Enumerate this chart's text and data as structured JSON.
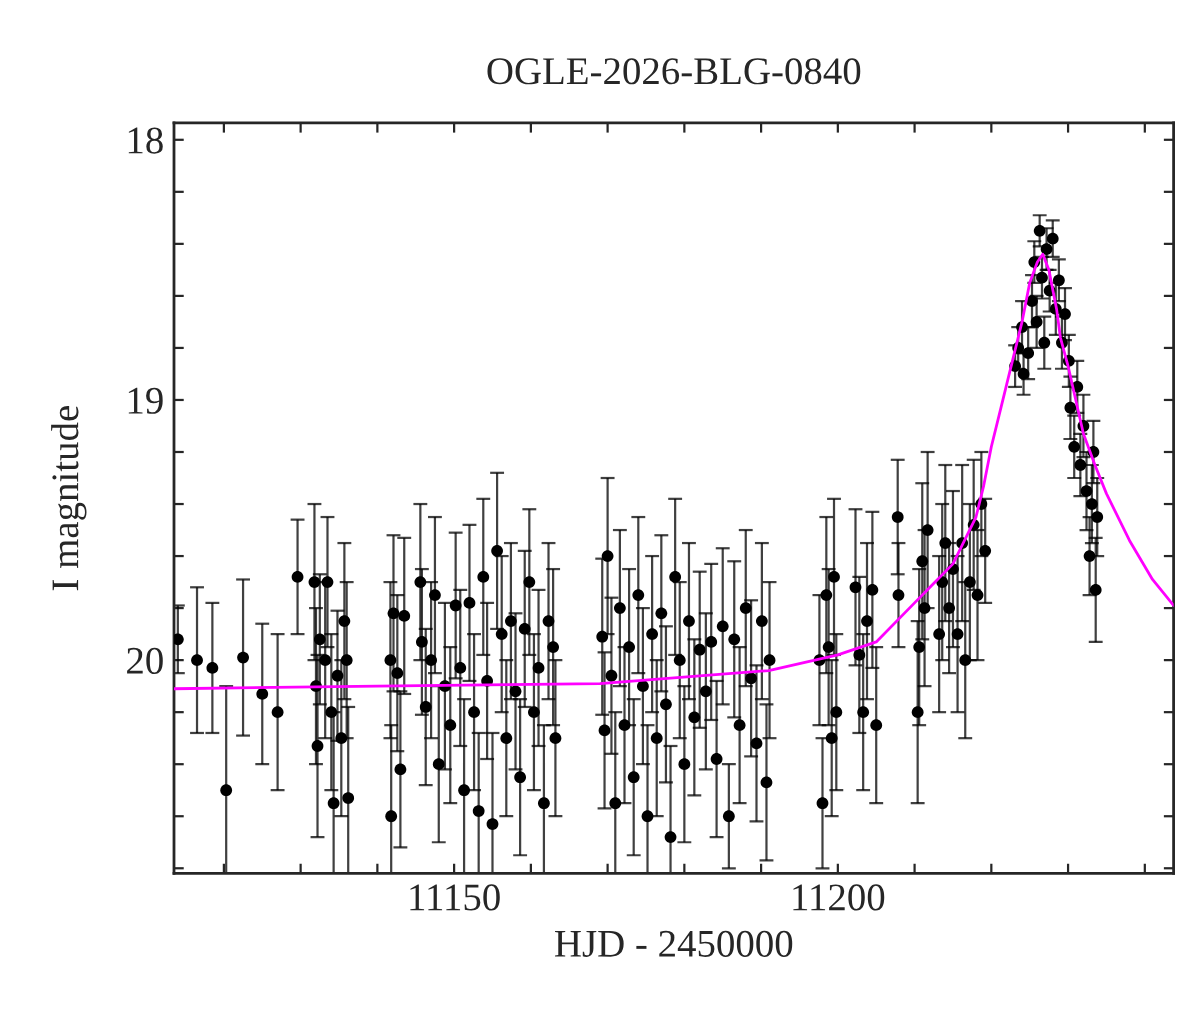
{
  "chart_data": {
    "type": "scatter",
    "title": "OGLE-2026-BLG-0840",
    "xlabel": "HJD - 2450000",
    "ylabel": "I magnitude",
    "xlim": [
      11113.5,
      11243.75
    ],
    "ylim": [
      20.82,
      17.935
    ],
    "xticks": [
      {
        "value": 11120,
        "label": null
      },
      {
        "value": 11130,
        "label": null
      },
      {
        "value": 11140,
        "label": null
      },
      11150,
      {
        "value": 11160,
        "label": null
      },
      {
        "value": 11170,
        "label": null
      },
      {
        "value": 11180,
        "label": null
      },
      {
        "value": 11190,
        "label": null
      },
      11200,
      {
        "value": 11210,
        "label": null
      },
      {
        "value": 11220,
        "label": null
      },
      {
        "value": 11230,
        "label": null
      },
      {
        "value": 11240,
        "label": null
      }
    ],
    "yticks": [
      18,
      {
        "value": 18.2,
        "label": null
      },
      {
        "value": 18.4,
        "label": null
      },
      {
        "value": 18.6,
        "label": null
      },
      {
        "value": 18.8,
        "label": null
      },
      19,
      {
        "value": 19.2,
        "label": null
      },
      {
        "value": 19.4,
        "label": null
      },
      {
        "value": 19.6,
        "label": null
      },
      {
        "value": 19.8,
        "label": null
      },
      20,
      {
        "value": 20.2,
        "label": null
      },
      {
        "value": 20.4,
        "label": null
      },
      {
        "value": 20.6,
        "label": null
      },
      {
        "value": 20.8,
        "label": null
      }
    ],
    "grid": false,
    "series": [
      {
        "color": "#000000",
        "marker": "circle",
        "x": [
          11114,
          11116.5,
          11118.5,
          11120.3,
          11122.5,
          11125,
          11127,
          11129.6,
          11131.8,
          11132,
          11132.2,
          11132.5,
          11133.2,
          11133.5,
          11134,
          11134.3,
          11134.8,
          11135.3,
          11135.7,
          11136,
          11136.2,
          11141.7,
          11141.8,
          11142.1,
          11142.6,
          11143,
          11143.5,
          11145.6,
          11145.8,
          11146.3,
          11147,
          11147.5,
          11148,
          11148.8,
          11149.5,
          11150.2,
          11150.8,
          11151.3,
          11152,
          11152.6,
          11153.2,
          11153.8,
          11154.3,
          11155,
          11155.6,
          11156.2,
          11156.8,
          11157.4,
          11158,
          11158.6,
          11159.2,
          11159.8,
          11160.4,
          11161,
          11161.7,
          11162.3,
          11162.9,
          11163.2,
          11169.3,
          11169.6,
          11170,
          11170.5,
          11171,
          11171.6,
          11172.2,
          11172.8,
          11173.4,
          11174,
          11174.6,
          11175.2,
          11175.8,
          11176.4,
          11177,
          11177.6,
          11178.2,
          11178.8,
          11179.4,
          11180,
          11180.6,
          11181.3,
          11182,
          11182.8,
          11183.5,
          11184.2,
          11185,
          11185.8,
          11186.5,
          11187.2,
          11188,
          11188.7,
          11189.4,
          11190.1,
          11190.7,
          11191.1,
          11197.6,
          11198,
          11198.5,
          11198.8,
          11199.2,
          11199.5,
          11199.8,
          11202.3,
          11202.8,
          11203.3,
          11203.8,
          11204.5,
          11205,
          11207.8,
          11207.9,
          11210.4,
          11210.6,
          11211,
          11211.3,
          11211.7,
          11213.2,
          11213.6,
          11214,
          11214.5,
          11215,
          11215.6,
          11216.2,
          11216.6,
          11217.2,
          11217.7,
          11218.2,
          11218.7,
          11219.2,
          11223.1,
          11223.5,
          11224,
          11224.2,
          11224.8,
          11225.3,
          11225.6,
          11225.9,
          11226.3,
          11226.6,
          11226.9,
          11227.2,
          11227.6,
          11228,
          11228.4,
          11228.8,
          11229.2,
          11229.6,
          11230.1,
          11230.3,
          11230.8,
          11231.2,
          11231.6,
          11232,
          11232.4,
          11232.8,
          11233.1,
          11233.3,
          11233.6,
          11233.8
        ],
        "values": [
          19.92,
          20.0,
          20.03,
          20.5,
          19.99,
          20.13,
          20.2,
          19.68,
          19.7,
          20.1,
          20.33,
          19.92,
          20.0,
          19.7,
          20.2,
          20.55,
          20.06,
          20.3,
          19.85,
          20.0,
          20.53,
          20.0,
          20.6,
          19.82,
          20.05,
          20.42,
          19.83,
          19.7,
          19.93,
          20.18,
          20.0,
          19.75,
          20.4,
          20.1,
          20.25,
          19.79,
          20.03,
          20.5,
          19.78,
          20.2,
          20.58,
          19.68,
          20.08,
          20.63,
          19.58,
          19.9,
          20.3,
          19.85,
          20.12,
          20.45,
          19.88,
          19.7,
          20.2,
          20.03,
          20.55,
          19.85,
          19.95,
          20.3,
          19.91,
          20.27,
          19.6,
          20.06,
          20.55,
          19.8,
          20.25,
          19.95,
          20.45,
          19.75,
          20.1,
          20.6,
          19.9,
          20.3,
          19.82,
          20.17,
          20.68,
          19.68,
          20.0,
          20.4,
          19.85,
          20.22,
          19.96,
          20.12,
          19.93,
          20.38,
          19.87,
          20.6,
          19.92,
          20.25,
          19.8,
          20.07,
          20.32,
          19.85,
          20.47,
          20.0,
          20.0,
          20.55,
          19.75,
          19.95,
          20.3,
          19.68,
          20.2,
          19.72,
          19.98,
          20.2,
          19.85,
          19.73,
          20.25,
          19.45,
          19.75,
          20.2,
          19.95,
          19.62,
          19.8,
          19.5,
          19.9,
          19.7,
          19.55,
          19.8,
          19.65,
          19.9,
          19.55,
          20.0,
          19.7,
          19.48,
          19.75,
          19.4,
          19.58,
          18.87,
          18.8,
          18.72,
          18.9,
          18.82,
          18.62,
          18.47,
          18.7,
          18.35,
          18.53,
          18.78,
          18.42,
          18.58,
          18.38,
          18.65,
          18.54,
          18.78,
          18.67,
          18.85,
          19.03,
          19.18,
          18.95,
          19.25,
          19.1,
          19.35,
          19.6,
          19.4,
          19.2,
          19.73,
          19.45
        ],
        "errors": [
          0.13,
          0.28,
          0.25,
          0.4,
          0.3,
          0.27,
          0.3,
          0.22,
          0.3,
          0.3,
          0.35,
          0.25,
          0.3,
          0.25,
          0.3,
          0.35,
          0.25,
          0.3,
          0.3,
          0.3,
          0.35,
          0.3,
          0.35,
          0.3,
          0.3,
          0.3,
          0.3,
          0.3,
          0.28,
          0.3,
          0.3,
          0.3,
          0.3,
          0.32,
          0.3,
          0.28,
          0.3,
          0.35,
          0.3,
          0.3,
          0.3,
          0.3,
          0.3,
          0.35,
          0.3,
          0.3,
          0.3,
          0.3,
          0.3,
          0.3,
          0.3,
          0.28,
          0.3,
          0.3,
          0.3,
          0.3,
          0.3,
          0.3,
          0.3,
          0.3,
          0.3,
          0.3,
          0.35,
          0.3,
          0.3,
          0.3,
          0.3,
          0.3,
          0.3,
          0.35,
          0.3,
          0.3,
          0.3,
          0.3,
          0.35,
          0.3,
          0.3,
          0.3,
          0.3,
          0.3,
          0.3,
          0.3,
          0.3,
          0.3,
          0.3,
          0.2,
          0.3,
          0.3,
          0.3,
          0.3,
          0.3,
          0.3,
          0.3,
          0.3,
          0.25,
          0.25,
          0.3,
          0.3,
          0.3,
          0.3,
          0.3,
          0.3,
          0.3,
          0.3,
          0.3,
          0.3,
          0.3,
          0.22,
          0.2,
          0.35,
          0.3,
          0.3,
          0.3,
          0.3,
          0.3,
          0.3,
          0.3,
          0.25,
          0.3,
          0.3,
          0.3,
          0.3,
          0.3,
          0.25,
          0.25,
          0.2,
          0.2,
          0.08,
          0.08,
          0.1,
          0.08,
          0.1,
          0.1,
          0.08,
          0.1,
          0.06,
          0.08,
          0.1,
          0.08,
          0.08,
          0.07,
          0.1,
          0.08,
          0.1,
          0.1,
          0.1,
          0.12,
          0.12,
          0.1,
          0.12,
          0.12,
          0.15,
          0.15,
          0.15,
          0.12,
          0.2,
          0.15
        ]
      },
      {
        "type": "line",
        "color": "#ff00ff",
        "marker": "none",
        "x": [
          11113.5,
          11140,
          11169,
          11191,
          11200,
          11205,
          11210,
          11212,
          11215,
          11218,
          11219,
          11220,
          11221,
          11222,
          11223,
          11224,
          11225,
          11226,
          11226.7,
          11227.5,
          11228.5,
          11229,
          11230,
          11231,
          11232,
          11233.5,
          11235,
          11238,
          11241,
          11243.75
        ],
        "values": [
          20.11,
          20.1,
          20.09,
          20.04,
          19.98,
          19.93,
          19.78,
          19.72,
          19.63,
          19.45,
          19.33,
          19.18,
          19.06,
          18.94,
          18.82,
          18.7,
          18.55,
          18.47,
          18.44,
          18.5,
          18.65,
          18.76,
          18.87,
          19.0,
          19.13,
          19.25,
          19.36,
          19.54,
          19.69,
          19.79
        ]
      }
    ]
  }
}
